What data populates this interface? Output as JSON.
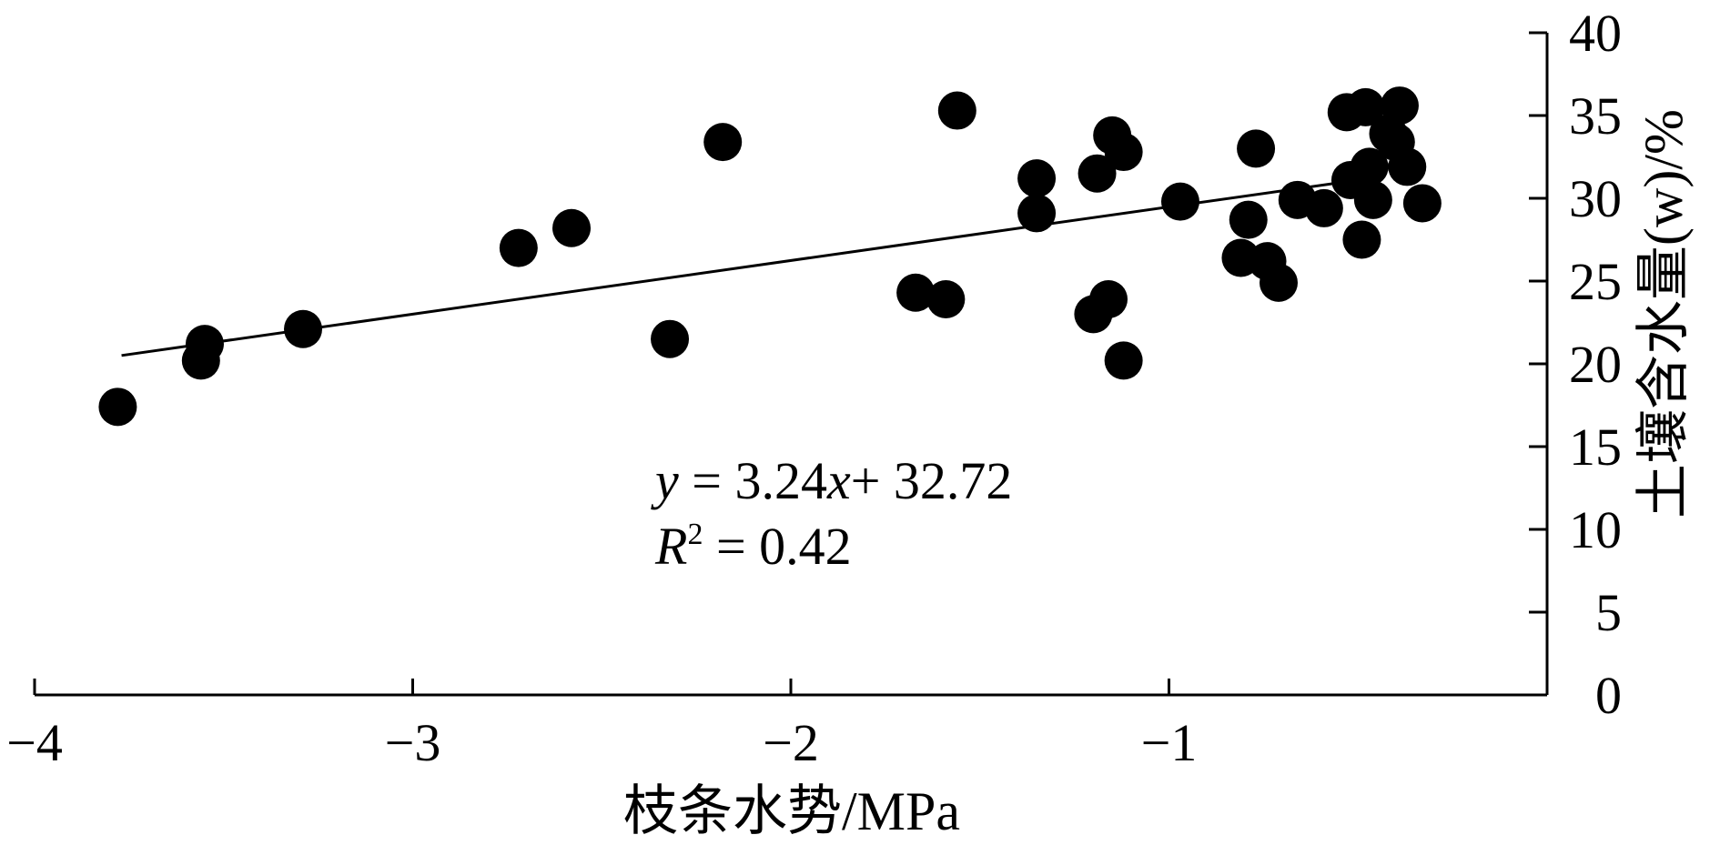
{
  "chart_data": {
    "type": "scatter",
    "xlabel": "枝条水势/MPa",
    "ylabel": "土壤含水量(w)/%",
    "xlim": [
      -4,
      0
    ],
    "ylim": [
      0,
      40
    ],
    "x_ticks": [
      -4,
      -3,
      -2,
      -1
    ],
    "y_ticks": [
      0,
      5,
      10,
      15,
      20,
      25,
      30,
      35,
      40
    ],
    "x_tick_labels": [
      "−4",
      "−3",
      "−2",
      "−1"
    ],
    "y_tick_labels": [
      "0",
      "5",
      "10",
      "15",
      "20",
      "25",
      "30",
      "35",
      "40"
    ],
    "y_axis_position": "right",
    "grid": false,
    "legend": "none",
    "annotation": {
      "equation_y": "y",
      "equation_rest": " = 3.24",
      "equation_x": "x",
      "equation_tail": "+ 32.72",
      "r2_r": "R",
      "r2_sup": "2",
      "r2_rest": " = 0.42"
    },
    "trendline": {
      "slope": 3.24,
      "intercept": 32.72,
      "x_range": [
        -3.77,
        -0.45
      ]
    },
    "points": [
      {
        "x": -3.78,
        "y": 17.4
      },
      {
        "x": -3.55,
        "y": 21.2
      },
      {
        "x": -3.56,
        "y": 20.2
      },
      {
        "x": -3.29,
        "y": 22.1
      },
      {
        "x": -2.72,
        "y": 27.0
      },
      {
        "x": -2.58,
        "y": 28.2
      },
      {
        "x": -2.32,
        "y": 21.5
      },
      {
        "x": -2.18,
        "y": 33.4
      },
      {
        "x": -1.67,
        "y": 24.3
      },
      {
        "x": -1.59,
        "y": 23.9
      },
      {
        "x": -1.56,
        "y": 35.3
      },
      {
        "x": -1.35,
        "y": 31.2
      },
      {
        "x": -1.35,
        "y": 29.1
      },
      {
        "x": -1.19,
        "y": 31.5
      },
      {
        "x": -1.2,
        "y": 23.0
      },
      {
        "x": -1.16,
        "y": 23.9
      },
      {
        "x": -1.15,
        "y": 33.8
      },
      {
        "x": -1.12,
        "y": 32.8
      },
      {
        "x": -1.12,
        "y": 20.2
      },
      {
        "x": -0.97,
        "y": 29.8
      },
      {
        "x": -0.81,
        "y": 26.4
      },
      {
        "x": -0.79,
        "y": 28.7
      },
      {
        "x": -0.77,
        "y": 33.0
      },
      {
        "x": -0.74,
        "y": 26.2
      },
      {
        "x": -0.71,
        "y": 24.9
      },
      {
        "x": -0.66,
        "y": 29.9
      },
      {
        "x": -0.59,
        "y": 29.4
      },
      {
        "x": -0.53,
        "y": 35.2
      },
      {
        "x": -0.52,
        "y": 31.1
      },
      {
        "x": -0.49,
        "y": 27.5
      },
      {
        "x": -0.48,
        "y": 35.5
      },
      {
        "x": -0.47,
        "y": 31.9
      },
      {
        "x": -0.46,
        "y": 29.9
      },
      {
        "x": -0.42,
        "y": 33.9
      },
      {
        "x": -0.4,
        "y": 33.4
      },
      {
        "x": -0.39,
        "y": 35.6
      },
      {
        "x": -0.37,
        "y": 31.9
      },
      {
        "x": -0.33,
        "y": 29.7
      }
    ]
  }
}
